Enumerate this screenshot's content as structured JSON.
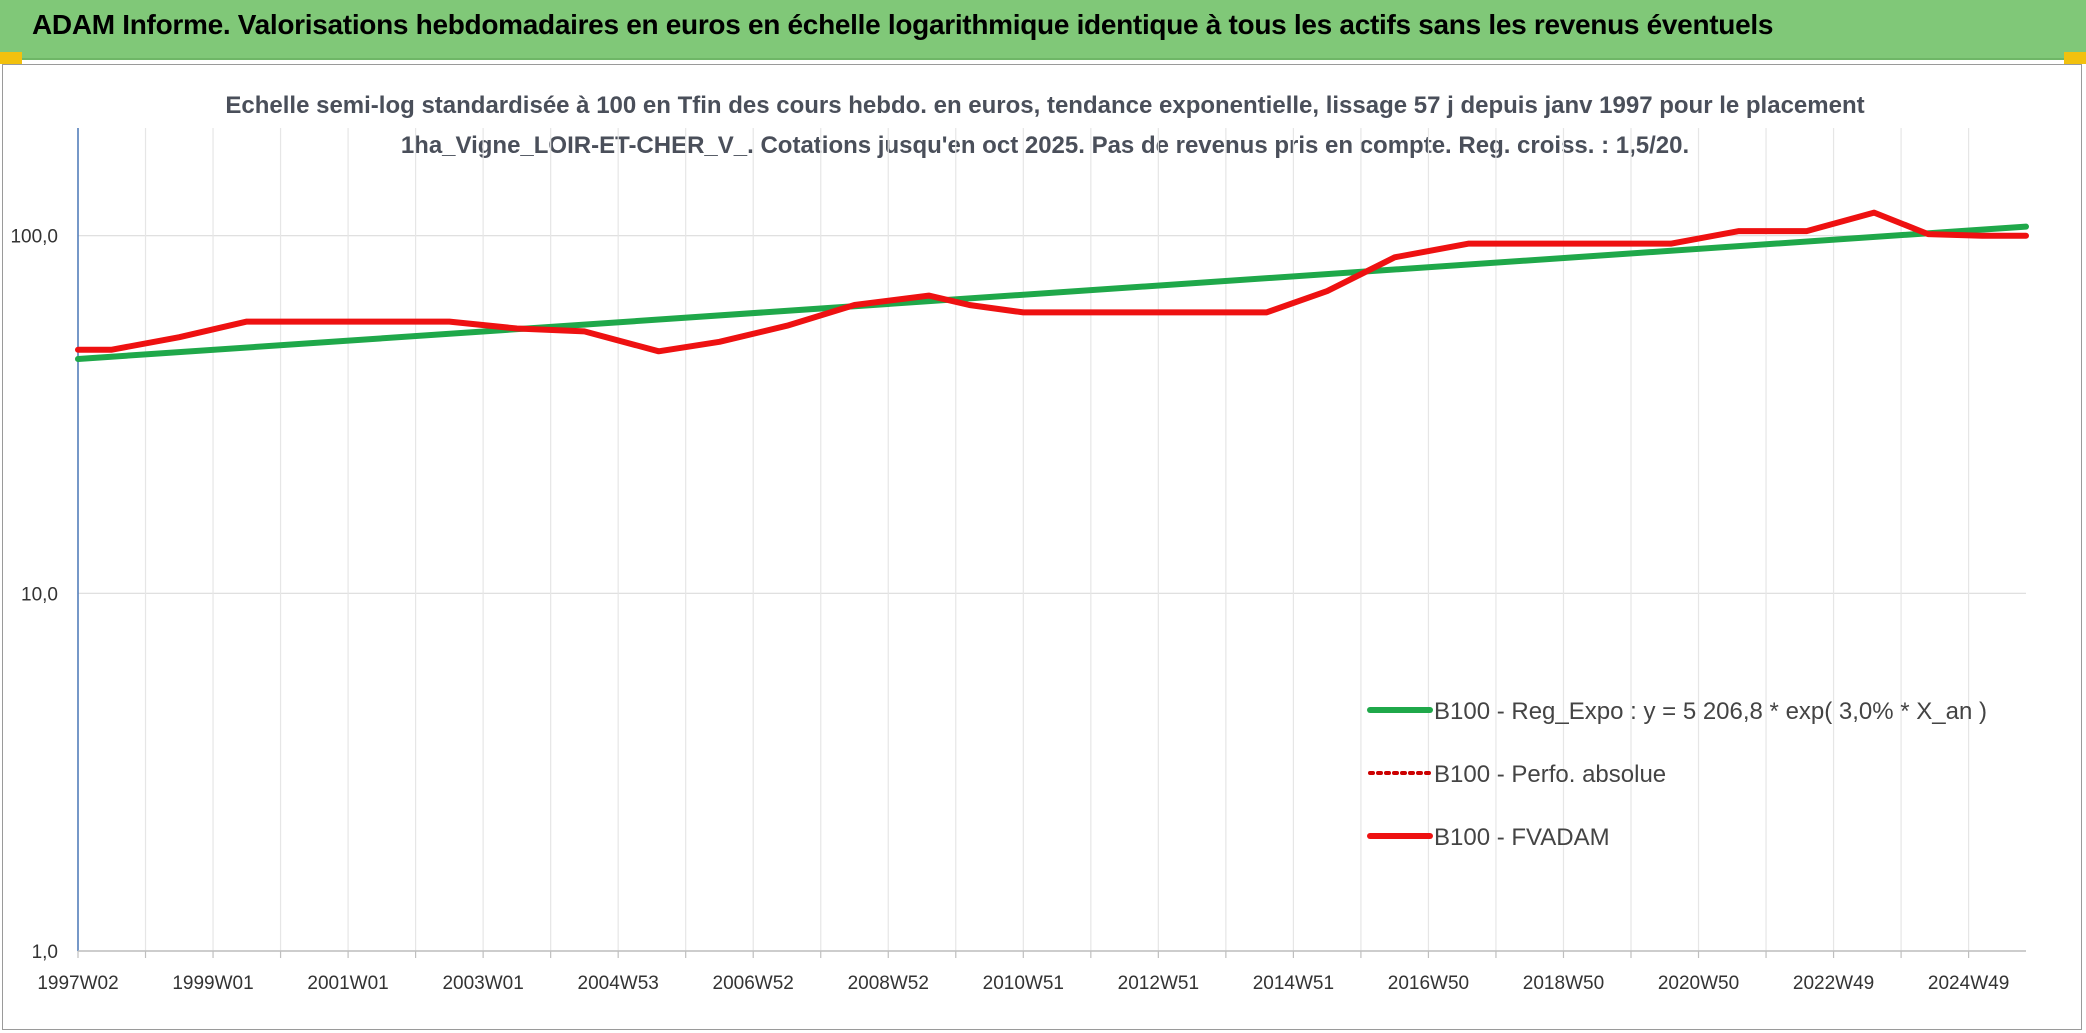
{
  "header": {
    "title": "ADAM Informe. Valorisations hebdomadaires en euros en échelle logarithmique identique à tous les actifs sans les revenus éventuels"
  },
  "colors": {
    "header_bg": "#80c878",
    "reg_line": "#1fa84a",
    "fvadam_line": "#ee1111",
    "perfo_line": "#cc0000",
    "accent_corner": "#f2c10e"
  },
  "chart_data": {
    "type": "line",
    "title": "Echelle semi-log standardisée à 100 en Tfin des cours hebdo. en euros, tendance exponentielle, lissage 57 j depuis janv 1997 pour le placement 1ha_Vigne_LOIR-ET-CHER_V_. Cotations jusqu'en oct 2025. Pas de revenus pris en compte. Reg. croiss. : 1,5/20.",
    "y_scale": "log",
    "ylim": [
      1,
      200
    ],
    "y_ticks": [
      {
        "value": 1,
        "label": "1,0"
      },
      {
        "value": 10,
        "label": "10,0"
      },
      {
        "value": 100,
        "label": "100,0"
      }
    ],
    "x_range": [
      1997.0,
      2025.85
    ],
    "x_ticks": [
      {
        "x": 1997.0,
        "label": "1997W02"
      },
      {
        "x": 1999.0,
        "label": "1999W01"
      },
      {
        "x": 2001.0,
        "label": "2001W01"
      },
      {
        "x": 2003.0,
        "label": "2003W01"
      },
      {
        "x": 2005.0,
        "label": "2004W53"
      },
      {
        "x": 2007.0,
        "label": "2006W52"
      },
      {
        "x": 2009.0,
        "label": "2008W52"
      },
      {
        "x": 2011.0,
        "label": "2010W51"
      },
      {
        "x": 2013.0,
        "label": "2012W51"
      },
      {
        "x": 2015.0,
        "label": "2014W51"
      },
      {
        "x": 2017.0,
        "label": "2016W50"
      },
      {
        "x": 2019.0,
        "label": "2018W50"
      },
      {
        "x": 2021.0,
        "label": "2020W50"
      },
      {
        "x": 2023.0,
        "label": "2022W49"
      },
      {
        "x": 2025.0,
        "label": "2024W49"
      }
    ],
    "grid": true,
    "legend_position": "bottom-right",
    "series": [
      {
        "name": "B100 - Reg_Expo : y = 5 206,8 * exp( 3,0% *  X_an )",
        "style": "solid-green",
        "points": [
          [
            1997.0,
            45.2
          ],
          [
            2025.85,
            106.0
          ]
        ]
      },
      {
        "name": "B100 - Perfo. absolue",
        "style": "dotted-red",
        "points": [
          [
            1997.0,
            48.0
          ],
          [
            1997.5,
            48.0
          ],
          [
            1998.5,
            52.0
          ],
          [
            1999.5,
            57.5
          ],
          [
            2001.0,
            57.5
          ],
          [
            2002.5,
            57.5
          ],
          [
            2003.5,
            55.0
          ],
          [
            2004.5,
            54.0
          ],
          [
            2005.6,
            47.5
          ],
          [
            2006.5,
            50.5
          ],
          [
            2007.5,
            56.0
          ],
          [
            2008.5,
            64.0
          ],
          [
            2009.6,
            68.0
          ],
          [
            2010.2,
            64.0
          ],
          [
            2011.0,
            61.0
          ],
          [
            2013.0,
            61.0
          ],
          [
            2014.6,
            61.0
          ],
          [
            2015.5,
            70.0
          ],
          [
            2016.5,
            87.0
          ],
          [
            2017.6,
            95.0
          ],
          [
            2019.0,
            95.0
          ],
          [
            2020.6,
            95.0
          ],
          [
            2021.6,
            103.0
          ],
          [
            2022.6,
            103.0
          ],
          [
            2023.6,
            116.0
          ],
          [
            2024.4,
            101.0
          ],
          [
            2025.2,
            100.0
          ],
          [
            2025.85,
            100.0
          ]
        ]
      },
      {
        "name": "B100 - FVADAM",
        "style": "solid-red",
        "points": [
          [
            1997.0,
            48.0
          ],
          [
            1997.5,
            48.0
          ],
          [
            1998.5,
            52.0
          ],
          [
            1999.5,
            57.5
          ],
          [
            2001.0,
            57.5
          ],
          [
            2002.5,
            57.5
          ],
          [
            2003.5,
            55.0
          ],
          [
            2004.5,
            54.0
          ],
          [
            2005.6,
            47.5
          ],
          [
            2006.5,
            50.5
          ],
          [
            2007.5,
            56.0
          ],
          [
            2008.5,
            64.0
          ],
          [
            2009.6,
            68.0
          ],
          [
            2010.2,
            64.0
          ],
          [
            2011.0,
            61.0
          ],
          [
            2013.0,
            61.0
          ],
          [
            2014.6,
            61.0
          ],
          [
            2015.5,
            70.0
          ],
          [
            2016.5,
            87.0
          ],
          [
            2017.6,
            95.0
          ],
          [
            2019.0,
            95.0
          ],
          [
            2020.6,
            95.0
          ],
          [
            2021.6,
            103.0
          ],
          [
            2022.6,
            103.0
          ],
          [
            2023.6,
            116.0
          ],
          [
            2024.4,
            101.0
          ],
          [
            2025.2,
            100.0
          ],
          [
            2025.85,
            100.0
          ]
        ]
      }
    ]
  }
}
